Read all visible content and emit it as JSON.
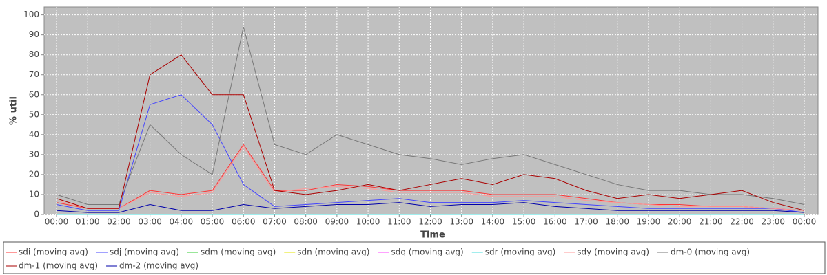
{
  "chart_data": {
    "type": "line",
    "x_label": "Time",
    "y_label": "% util",
    "x": [
      "00:00",
      "01:00",
      "02:00",
      "03:00",
      "04:00",
      "05:00",
      "06:00",
      "07:00",
      "08:00",
      "09:00",
      "10:00",
      "11:00",
      "12:00",
      "13:00",
      "14:00",
      "15:00",
      "16:00",
      "17:00",
      "18:00",
      "19:00",
      "20:00",
      "21:00",
      "22:00",
      "23:00",
      "00:00"
    ],
    "ylim": [
      0,
      104
    ],
    "yticks": [
      0,
      10,
      20,
      30,
      40,
      50,
      60,
      70,
      80,
      90,
      100
    ],
    "grid": true,
    "legend": "bottom",
    "series": [
      {
        "name": "sdi (moving avg)",
        "color": "#ff3333",
        "values": [
          6,
          3,
          3,
          12,
          10,
          12,
          35,
          12,
          12,
          15,
          14,
          12,
          12,
          12,
          10,
          10,
          10,
          8,
          6,
          5,
          5,
          4,
          4,
          3,
          2
        ]
      },
      {
        "name": "sdj (moving avg)",
        "color": "#4444ff",
        "values": [
          5,
          2,
          2,
          55,
          60,
          45,
          15,
          4,
          5,
          6,
          7,
          8,
          6,
          6,
          6,
          7,
          6,
          5,
          4,
          3,
          3,
          3,
          3,
          3,
          1
        ]
      },
      {
        "name": "sdm (moving avg)",
        "color": "#33cc33",
        "values": [
          0,
          0,
          0,
          0,
          0,
          0,
          0,
          0,
          0,
          0,
          0,
          0,
          0,
          0,
          0,
          0,
          0,
          0,
          0,
          0,
          0,
          0,
          0,
          0,
          0
        ]
      },
      {
        "name": "sdn (moving avg)",
        "color": "#e6e600",
        "values": [
          0,
          0,
          0,
          0,
          0,
          0,
          0,
          0,
          0,
          0,
          0,
          0,
          0,
          0,
          0,
          0,
          0,
          0,
          0,
          0,
          0,
          0,
          0,
          0,
          0
        ]
      },
      {
        "name": "sdq (moving avg)",
        "color": "#ff44ff",
        "values": [
          0,
          0,
          0,
          0,
          0,
          0,
          0,
          0,
          0,
          0,
          0,
          0,
          0,
          0,
          0,
          0,
          0,
          0,
          0,
          0,
          0,
          0,
          0,
          0,
          0
        ]
      },
      {
        "name": "sdr (moving avg)",
        "color": "#44dddd",
        "values": [
          0,
          0,
          0,
          0,
          0,
          0,
          0,
          0,
          0,
          0,
          0,
          0,
          0,
          0,
          0,
          0,
          0,
          0,
          0,
          0,
          0,
          0,
          0,
          0,
          0
        ]
      },
      {
        "name": "sdy (moving avg)",
        "color": "#ff9999",
        "values": [
          7,
          3,
          3,
          11,
          9,
          11,
          34,
          11,
          13,
          14,
          13,
          11,
          11,
          11,
          9,
          9,
          9,
          7,
          6,
          5,
          4,
          4,
          4,
          3,
          2
        ]
      },
      {
        "name": "dm-0 (moving avg)",
        "color": "#777777",
        "values": [
          10,
          5,
          5,
          45,
          30,
          20,
          94,
          35,
          30,
          40,
          35,
          30,
          28,
          25,
          28,
          30,
          25,
          20,
          15,
          12,
          12,
          10,
          10,
          8,
          5
        ]
      },
      {
        "name": "dm-1 (moving avg)",
        "color": "#aa0000",
        "values": [
          8,
          3,
          3,
          70,
          80,
          60,
          60,
          12,
          10,
          12,
          15,
          12,
          15,
          18,
          15,
          20,
          18,
          12,
          8,
          10,
          8,
          10,
          12,
          6,
          2
        ]
      },
      {
        "name": "dm-2 (moving avg)",
        "color": "#0000aa",
        "values": [
          2,
          1,
          1,
          5,
          2,
          2,
          5,
          3,
          4,
          5,
          5,
          6,
          4,
          5,
          5,
          6,
          4,
          3,
          2,
          2,
          2,
          2,
          2,
          2,
          1
        ]
      }
    ]
  }
}
